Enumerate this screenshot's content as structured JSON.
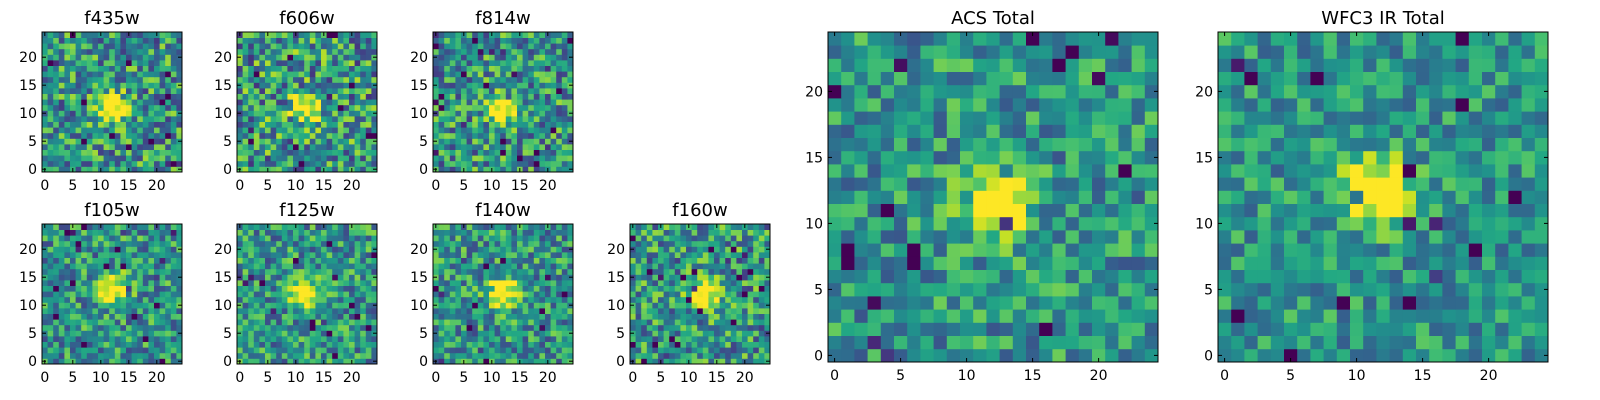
{
  "chart_data": [
    {
      "type": "heatmap",
      "title": "f435w",
      "colormap": "viridis",
      "xlim": [
        -0.5,
        24.5
      ],
      "ylim": [
        -0.5,
        24.5
      ],
      "xticks": [
        0,
        5,
        10,
        15,
        20
      ],
      "yticks": [
        0,
        5,
        10,
        15,
        20
      ],
      "source_center": [
        12,
        11
      ],
      "noise_level": 0.45
    },
    {
      "type": "heatmap",
      "title": "f606w",
      "colormap": "viridis",
      "xlim": [
        -0.5,
        24.5
      ],
      "ylim": [
        -0.5,
        24.5
      ],
      "xticks": [
        0,
        5,
        10,
        15,
        20
      ],
      "yticks": [
        0,
        5,
        10,
        15,
        20
      ],
      "source_center": [
        12,
        11
      ],
      "noise_level": 0.5
    },
    {
      "type": "heatmap",
      "title": "f814w",
      "colormap": "viridis",
      "xlim": [
        -0.5,
        24.5
      ],
      "ylim": [
        -0.5,
        24.5
      ],
      "xticks": [
        0,
        5,
        10,
        15,
        20
      ],
      "yticks": [
        0,
        5,
        10,
        15,
        20
      ],
      "source_center": [
        12,
        11
      ],
      "noise_level": 0.45
    },
    {
      "type": "heatmap",
      "title": "f105w",
      "colormap": "viridis",
      "xlim": [
        -0.5,
        24.5
      ],
      "ylim": [
        -0.5,
        24.5
      ],
      "xticks": [
        0,
        5,
        10,
        15,
        20
      ],
      "yticks": [
        0,
        5,
        10,
        15,
        20
      ],
      "source_center": [
        12,
        13
      ],
      "noise_level": 0.4
    },
    {
      "type": "heatmap",
      "title": "f125w",
      "colormap": "viridis",
      "xlim": [
        -0.5,
        24.5
      ],
      "ylim": [
        -0.5,
        24.5
      ],
      "xticks": [
        0,
        5,
        10,
        15,
        20
      ],
      "yticks": [
        0,
        5,
        10,
        15,
        20
      ],
      "source_center": [
        12,
        12
      ],
      "noise_level": 0.4
    },
    {
      "type": "heatmap",
      "title": "f140w",
      "colormap": "viridis",
      "xlim": [
        -0.5,
        24.5
      ],
      "ylim": [
        -0.5,
        24.5
      ],
      "xticks": [
        0,
        5,
        10,
        15,
        20
      ],
      "yticks": [
        0,
        5,
        10,
        15,
        20
      ],
      "source_center": [
        12,
        12
      ],
      "noise_level": 0.4
    },
    {
      "type": "heatmap",
      "title": "f160w",
      "colormap": "viridis",
      "xlim": [
        -0.5,
        24.5
      ],
      "ylim": [
        -0.5,
        24.5
      ],
      "xticks": [
        0,
        5,
        10,
        15,
        20
      ],
      "yticks": [
        0,
        5,
        10,
        15,
        20
      ],
      "source_center": [
        13,
        12
      ],
      "noise_level": 0.45
    },
    {
      "type": "heatmap",
      "title": "ACS Total",
      "colormap": "viridis",
      "xlim": [
        -0.5,
        24.5
      ],
      "ylim": [
        -0.5,
        24.5
      ],
      "xticks": [
        0,
        5,
        10,
        15,
        20
      ],
      "yticks": [
        0,
        5,
        10,
        15,
        20
      ],
      "source_center": [
        12,
        11.5
      ],
      "noise_level": 0.35
    },
    {
      "type": "heatmap",
      "title": "WFC3 IR Total",
      "colormap": "viridis",
      "xlim": [
        -0.5,
        24.5
      ],
      "ylim": [
        -0.5,
        24.5
      ],
      "xticks": [
        0,
        5,
        10,
        15,
        20
      ],
      "yticks": [
        0,
        5,
        10,
        15,
        20
      ],
      "source_center": [
        11.5,
        12.5
      ],
      "noise_level": 0.3
    }
  ],
  "colors": {
    "viridis_low": "#440154",
    "viridis_mid": "#21918c",
    "viridis_high": "#fde725"
  }
}
